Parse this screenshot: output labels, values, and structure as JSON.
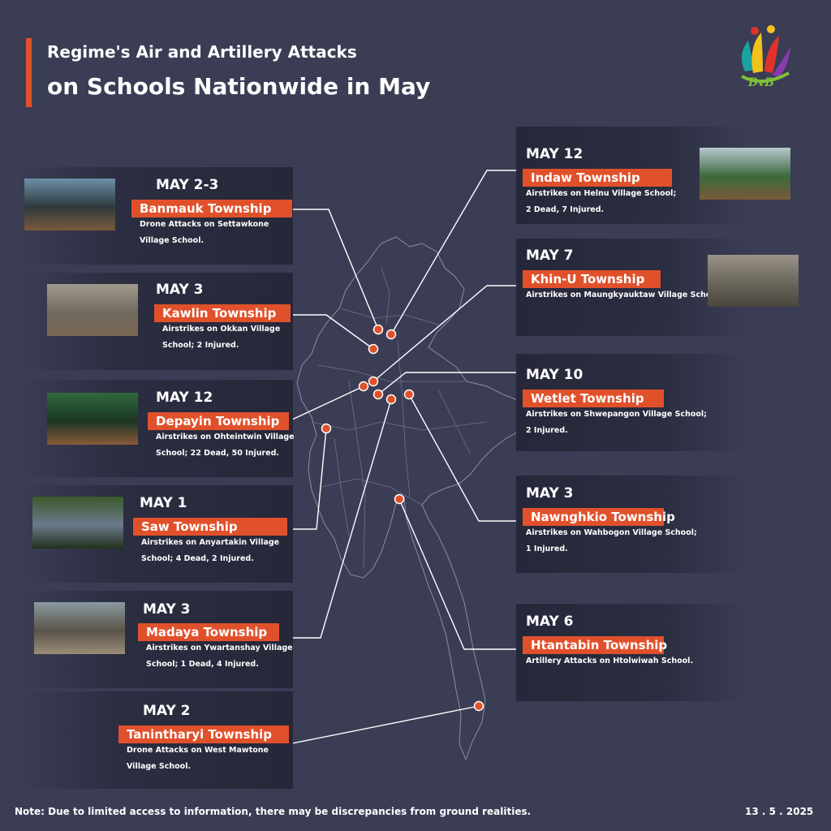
{
  "title": {
    "line1": "Regime's Air and Artillery Attacks",
    "line2": "on Schools Nationwide in May"
  },
  "logo": {
    "text": "DvB",
    "icon": "dvb-logo-icon"
  },
  "accent_color": "#e0512b",
  "background_color": "#3a3d54",
  "attacks": [
    {
      "date": "MAY 2-3",
      "township": "Banmauk Township",
      "desc_lines": [
        "Drone Attacks on Settawkone",
        "Village School."
      ]
    },
    {
      "date": "MAY 3",
      "township": "Kawlin Township",
      "desc_lines": [
        "Airstrikes on Okkan Village",
        "School; 2 Injured."
      ]
    },
    {
      "date": "MAY 12",
      "township": "Depayin Township",
      "desc_lines": [
        "Airstrikes on Ohteintwin Village",
        "School; 22 Dead, 50 Injured."
      ]
    },
    {
      "date": "MAY 1",
      "township": "Saw Township",
      "desc_lines": [
        "Airstrikes on Anyartakin Village",
        "School; 4 Dead, 2 Injured."
      ]
    },
    {
      "date": "MAY 3",
      "township": "Madaya Township",
      "desc_lines": [
        "Airstrikes on Ywartanshay Village",
        "School; 1 Dead, 4 Injured."
      ]
    },
    {
      "date": "MAY 2",
      "township": "Tanintharyi Township",
      "desc_lines": [
        "Drone Attacks on West Mawtone",
        "Village School."
      ]
    },
    {
      "date": "MAY 12",
      "township": "Indaw Township",
      "desc_lines": [
        "Airstrikes on Helnu Village School;",
        "2 Dead, 7 Injured."
      ]
    },
    {
      "date": "MAY 7",
      "township": "Khin-U Township",
      "desc_lines": [
        "Airstrikes on Maungkyauktaw Village School."
      ]
    },
    {
      "date": "MAY 10",
      "township": "Wetlet Township",
      "desc_lines": [
        "Airstrikes on Shwepangon Village School;",
        "2 Injured."
      ]
    },
    {
      "date": "MAY 3",
      "township": "Nawnghkio Township",
      "desc_lines": [
        "Airstrikes on Wahbogon Village School;",
        "1 Injured."
      ]
    },
    {
      "date": "MAY 6",
      "township": "Htantabin Township",
      "desc_lines": [
        "Artillery Attacks on Htolwiwah School."
      ]
    }
  ],
  "note": "Note: Due to limited access to information, there may be discrepancies from ground realities.",
  "date_stamp": "13 . 5 . 2025"
}
